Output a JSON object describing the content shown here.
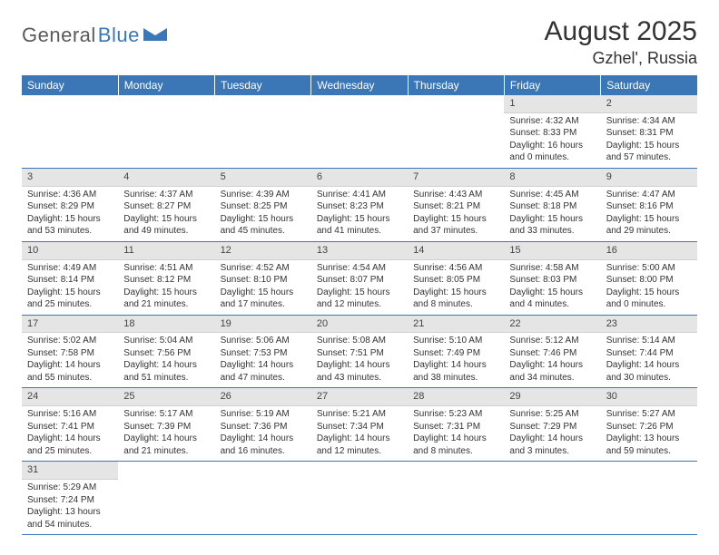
{
  "logo": {
    "dark": "General",
    "blue": "Blue"
  },
  "title": "August 2025",
  "location": "Gzhel', Russia",
  "colors": {
    "header_bg": "#3b77b7",
    "header_text": "#ffffff",
    "daynum_bg": "#e5e5e5",
    "row_divider": "#3b77b7",
    "body_text": "#333333"
  },
  "weekdays": [
    "Sunday",
    "Monday",
    "Tuesday",
    "Wednesday",
    "Thursday",
    "Friday",
    "Saturday"
  ],
  "weeks": [
    [
      null,
      null,
      null,
      null,
      null,
      {
        "n": "1",
        "sunrise": "4:32 AM",
        "sunset": "8:33 PM",
        "daylight": "16 hours and 0 minutes."
      },
      {
        "n": "2",
        "sunrise": "4:34 AM",
        "sunset": "8:31 PM",
        "daylight": "15 hours and 57 minutes."
      }
    ],
    [
      {
        "n": "3",
        "sunrise": "4:36 AM",
        "sunset": "8:29 PM",
        "daylight": "15 hours and 53 minutes."
      },
      {
        "n": "4",
        "sunrise": "4:37 AM",
        "sunset": "8:27 PM",
        "daylight": "15 hours and 49 minutes."
      },
      {
        "n": "5",
        "sunrise": "4:39 AM",
        "sunset": "8:25 PM",
        "daylight": "15 hours and 45 minutes."
      },
      {
        "n": "6",
        "sunrise": "4:41 AM",
        "sunset": "8:23 PM",
        "daylight": "15 hours and 41 minutes."
      },
      {
        "n": "7",
        "sunrise": "4:43 AM",
        "sunset": "8:21 PM",
        "daylight": "15 hours and 37 minutes."
      },
      {
        "n": "8",
        "sunrise": "4:45 AM",
        "sunset": "8:18 PM",
        "daylight": "15 hours and 33 minutes."
      },
      {
        "n": "9",
        "sunrise": "4:47 AM",
        "sunset": "8:16 PM",
        "daylight": "15 hours and 29 minutes."
      }
    ],
    [
      {
        "n": "10",
        "sunrise": "4:49 AM",
        "sunset": "8:14 PM",
        "daylight": "15 hours and 25 minutes."
      },
      {
        "n": "11",
        "sunrise": "4:51 AM",
        "sunset": "8:12 PM",
        "daylight": "15 hours and 21 minutes."
      },
      {
        "n": "12",
        "sunrise": "4:52 AM",
        "sunset": "8:10 PM",
        "daylight": "15 hours and 17 minutes."
      },
      {
        "n": "13",
        "sunrise": "4:54 AM",
        "sunset": "8:07 PM",
        "daylight": "15 hours and 12 minutes."
      },
      {
        "n": "14",
        "sunrise": "4:56 AM",
        "sunset": "8:05 PM",
        "daylight": "15 hours and 8 minutes."
      },
      {
        "n": "15",
        "sunrise": "4:58 AM",
        "sunset": "8:03 PM",
        "daylight": "15 hours and 4 minutes."
      },
      {
        "n": "16",
        "sunrise": "5:00 AM",
        "sunset": "8:00 PM",
        "daylight": "15 hours and 0 minutes."
      }
    ],
    [
      {
        "n": "17",
        "sunrise": "5:02 AM",
        "sunset": "7:58 PM",
        "daylight": "14 hours and 55 minutes."
      },
      {
        "n": "18",
        "sunrise": "5:04 AM",
        "sunset": "7:56 PM",
        "daylight": "14 hours and 51 minutes."
      },
      {
        "n": "19",
        "sunrise": "5:06 AM",
        "sunset": "7:53 PM",
        "daylight": "14 hours and 47 minutes."
      },
      {
        "n": "20",
        "sunrise": "5:08 AM",
        "sunset": "7:51 PM",
        "daylight": "14 hours and 43 minutes."
      },
      {
        "n": "21",
        "sunrise": "5:10 AM",
        "sunset": "7:49 PM",
        "daylight": "14 hours and 38 minutes."
      },
      {
        "n": "22",
        "sunrise": "5:12 AM",
        "sunset": "7:46 PM",
        "daylight": "14 hours and 34 minutes."
      },
      {
        "n": "23",
        "sunrise": "5:14 AM",
        "sunset": "7:44 PM",
        "daylight": "14 hours and 30 minutes."
      }
    ],
    [
      {
        "n": "24",
        "sunrise": "5:16 AM",
        "sunset": "7:41 PM",
        "daylight": "14 hours and 25 minutes."
      },
      {
        "n": "25",
        "sunrise": "5:17 AM",
        "sunset": "7:39 PM",
        "daylight": "14 hours and 21 minutes."
      },
      {
        "n": "26",
        "sunrise": "5:19 AM",
        "sunset": "7:36 PM",
        "daylight": "14 hours and 16 minutes."
      },
      {
        "n": "27",
        "sunrise": "5:21 AM",
        "sunset": "7:34 PM",
        "daylight": "14 hours and 12 minutes."
      },
      {
        "n": "28",
        "sunrise": "5:23 AM",
        "sunset": "7:31 PM",
        "daylight": "14 hours and 8 minutes."
      },
      {
        "n": "29",
        "sunrise": "5:25 AM",
        "sunset": "7:29 PM",
        "daylight": "14 hours and 3 minutes."
      },
      {
        "n": "30",
        "sunrise": "5:27 AM",
        "sunset": "7:26 PM",
        "daylight": "13 hours and 59 minutes."
      }
    ],
    [
      {
        "n": "31",
        "sunrise": "5:29 AM",
        "sunset": "7:24 PM",
        "daylight": "13 hours and 54 minutes."
      },
      null,
      null,
      null,
      null,
      null,
      null
    ]
  ],
  "labels": {
    "sunrise": "Sunrise: ",
    "sunset": "Sunset: ",
    "daylight": "Daylight: "
  }
}
